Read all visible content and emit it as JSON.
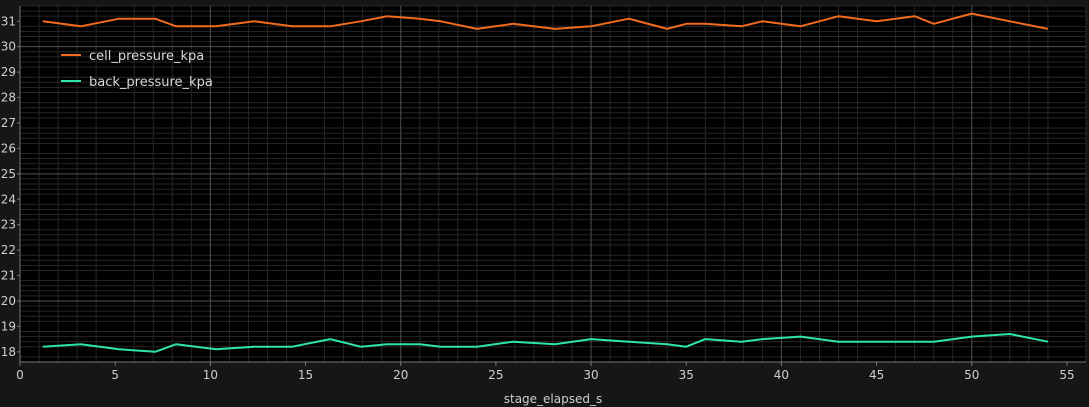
{
  "colors": {
    "background": "#161616",
    "plot_background": "#000000",
    "minor_grid": "#262626",
    "major_grid": "#505050",
    "axis": "#777777"
  },
  "chart_data": {
    "type": "line",
    "xlabel": "stage_elapsed_s",
    "ylabel": "",
    "xlim": [
      0,
      56
    ],
    "ylim": [
      17.6,
      31.6
    ],
    "x_ticks": [
      0,
      5,
      10,
      15,
      20,
      25,
      30,
      35,
      40,
      45,
      50,
      55
    ],
    "y_ticks": [
      18,
      19,
      20,
      21,
      22,
      23,
      24,
      25,
      26,
      27,
      28,
      29,
      30,
      31
    ],
    "grid": true,
    "legend_position": "top-left",
    "x": [
      1.2,
      3.2,
      5.2,
      7.1,
      8.2,
      10.3,
      12.3,
      14.3,
      16.3,
      17.9,
      19.3,
      21.0,
      22.1,
      24.0,
      25.9,
      28.1,
      30.0,
      32.0,
      34.0,
      35.0,
      36.0,
      37.9,
      39.0,
      41.0,
      43.0,
      45.0,
      47.0,
      48.0,
      50.0,
      52.0,
      54.0
    ],
    "series": [
      {
        "name": "cell_pressure_kpa",
        "color": "#f26b1d",
        "values": [
          31.0,
          30.8,
          31.1,
          31.1,
          30.8,
          30.8,
          31.0,
          30.8,
          30.8,
          31.0,
          31.2,
          31.1,
          31.0,
          30.7,
          30.9,
          30.7,
          30.8,
          31.1,
          30.7,
          30.9,
          30.9,
          30.8,
          31.0,
          30.8,
          31.2,
          31.0,
          31.2,
          30.9,
          31.3,
          31.0,
          30.7
        ]
      },
      {
        "name": "back_pressure_kpa",
        "color": "#2ee6a6",
        "values": [
          18.2,
          18.3,
          18.1,
          18.0,
          18.3,
          18.1,
          18.2,
          18.2,
          18.5,
          18.2,
          18.3,
          18.3,
          18.2,
          18.2,
          18.4,
          18.3,
          18.5,
          18.4,
          18.3,
          18.2,
          18.5,
          18.4,
          18.5,
          18.6,
          18.4,
          18.4,
          18.4,
          18.4,
          18.6,
          18.7,
          18.4
        ]
      }
    ]
  }
}
